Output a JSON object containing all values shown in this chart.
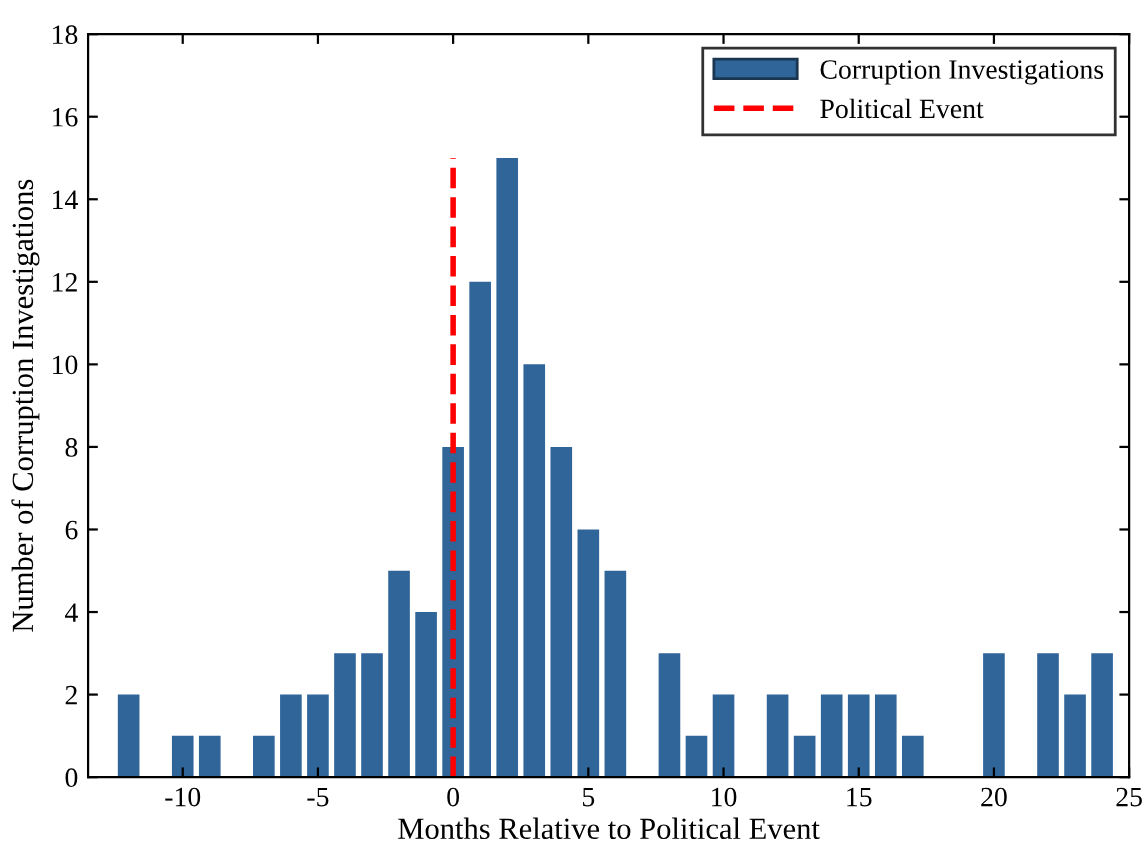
{
  "chart_data": {
    "type": "bar",
    "xlabel": "Months Relative to Political Event",
    "ylabel": "Number of Corruption Investigations",
    "x": [
      -12,
      -11,
      -10,
      -9,
      -8,
      -7,
      -6,
      -5,
      -4,
      -3,
      -2,
      -1,
      0,
      1,
      2,
      3,
      4,
      5,
      6,
      7,
      8,
      9,
      10,
      11,
      12,
      13,
      14,
      15,
      16,
      17,
      18,
      19,
      20,
      21,
      22,
      23,
      24
    ],
    "series": [
      {
        "name": "Corruption Investigations",
        "color": "#2f6599",
        "values": [
          2,
          0,
          1,
          1,
          0,
          1,
          2,
          2,
          3,
          3,
          5,
          4,
          8,
          12,
          15,
          10,
          8,
          6,
          5,
          0,
          3,
          1,
          2,
          0,
          2,
          1,
          2,
          2,
          2,
          1,
          0,
          0,
          3,
          0,
          3,
          2,
          3
        ]
      }
    ],
    "ref_lines": [
      {
        "axis": "x",
        "value": 0,
        "label": "Political Event",
        "color": "#ff0000",
        "line_style": "dashed"
      }
    ],
    "xlim": [
      -13.5,
      25
    ],
    "xticks": [
      -10,
      -5,
      0,
      5,
      10,
      15,
      20,
      25
    ],
    "ylim": [
      0,
      18
    ],
    "yticks": [
      0,
      2,
      4,
      6,
      8,
      10,
      12,
      14,
      16,
      18
    ],
    "grid": false,
    "legend": "top right"
  }
}
